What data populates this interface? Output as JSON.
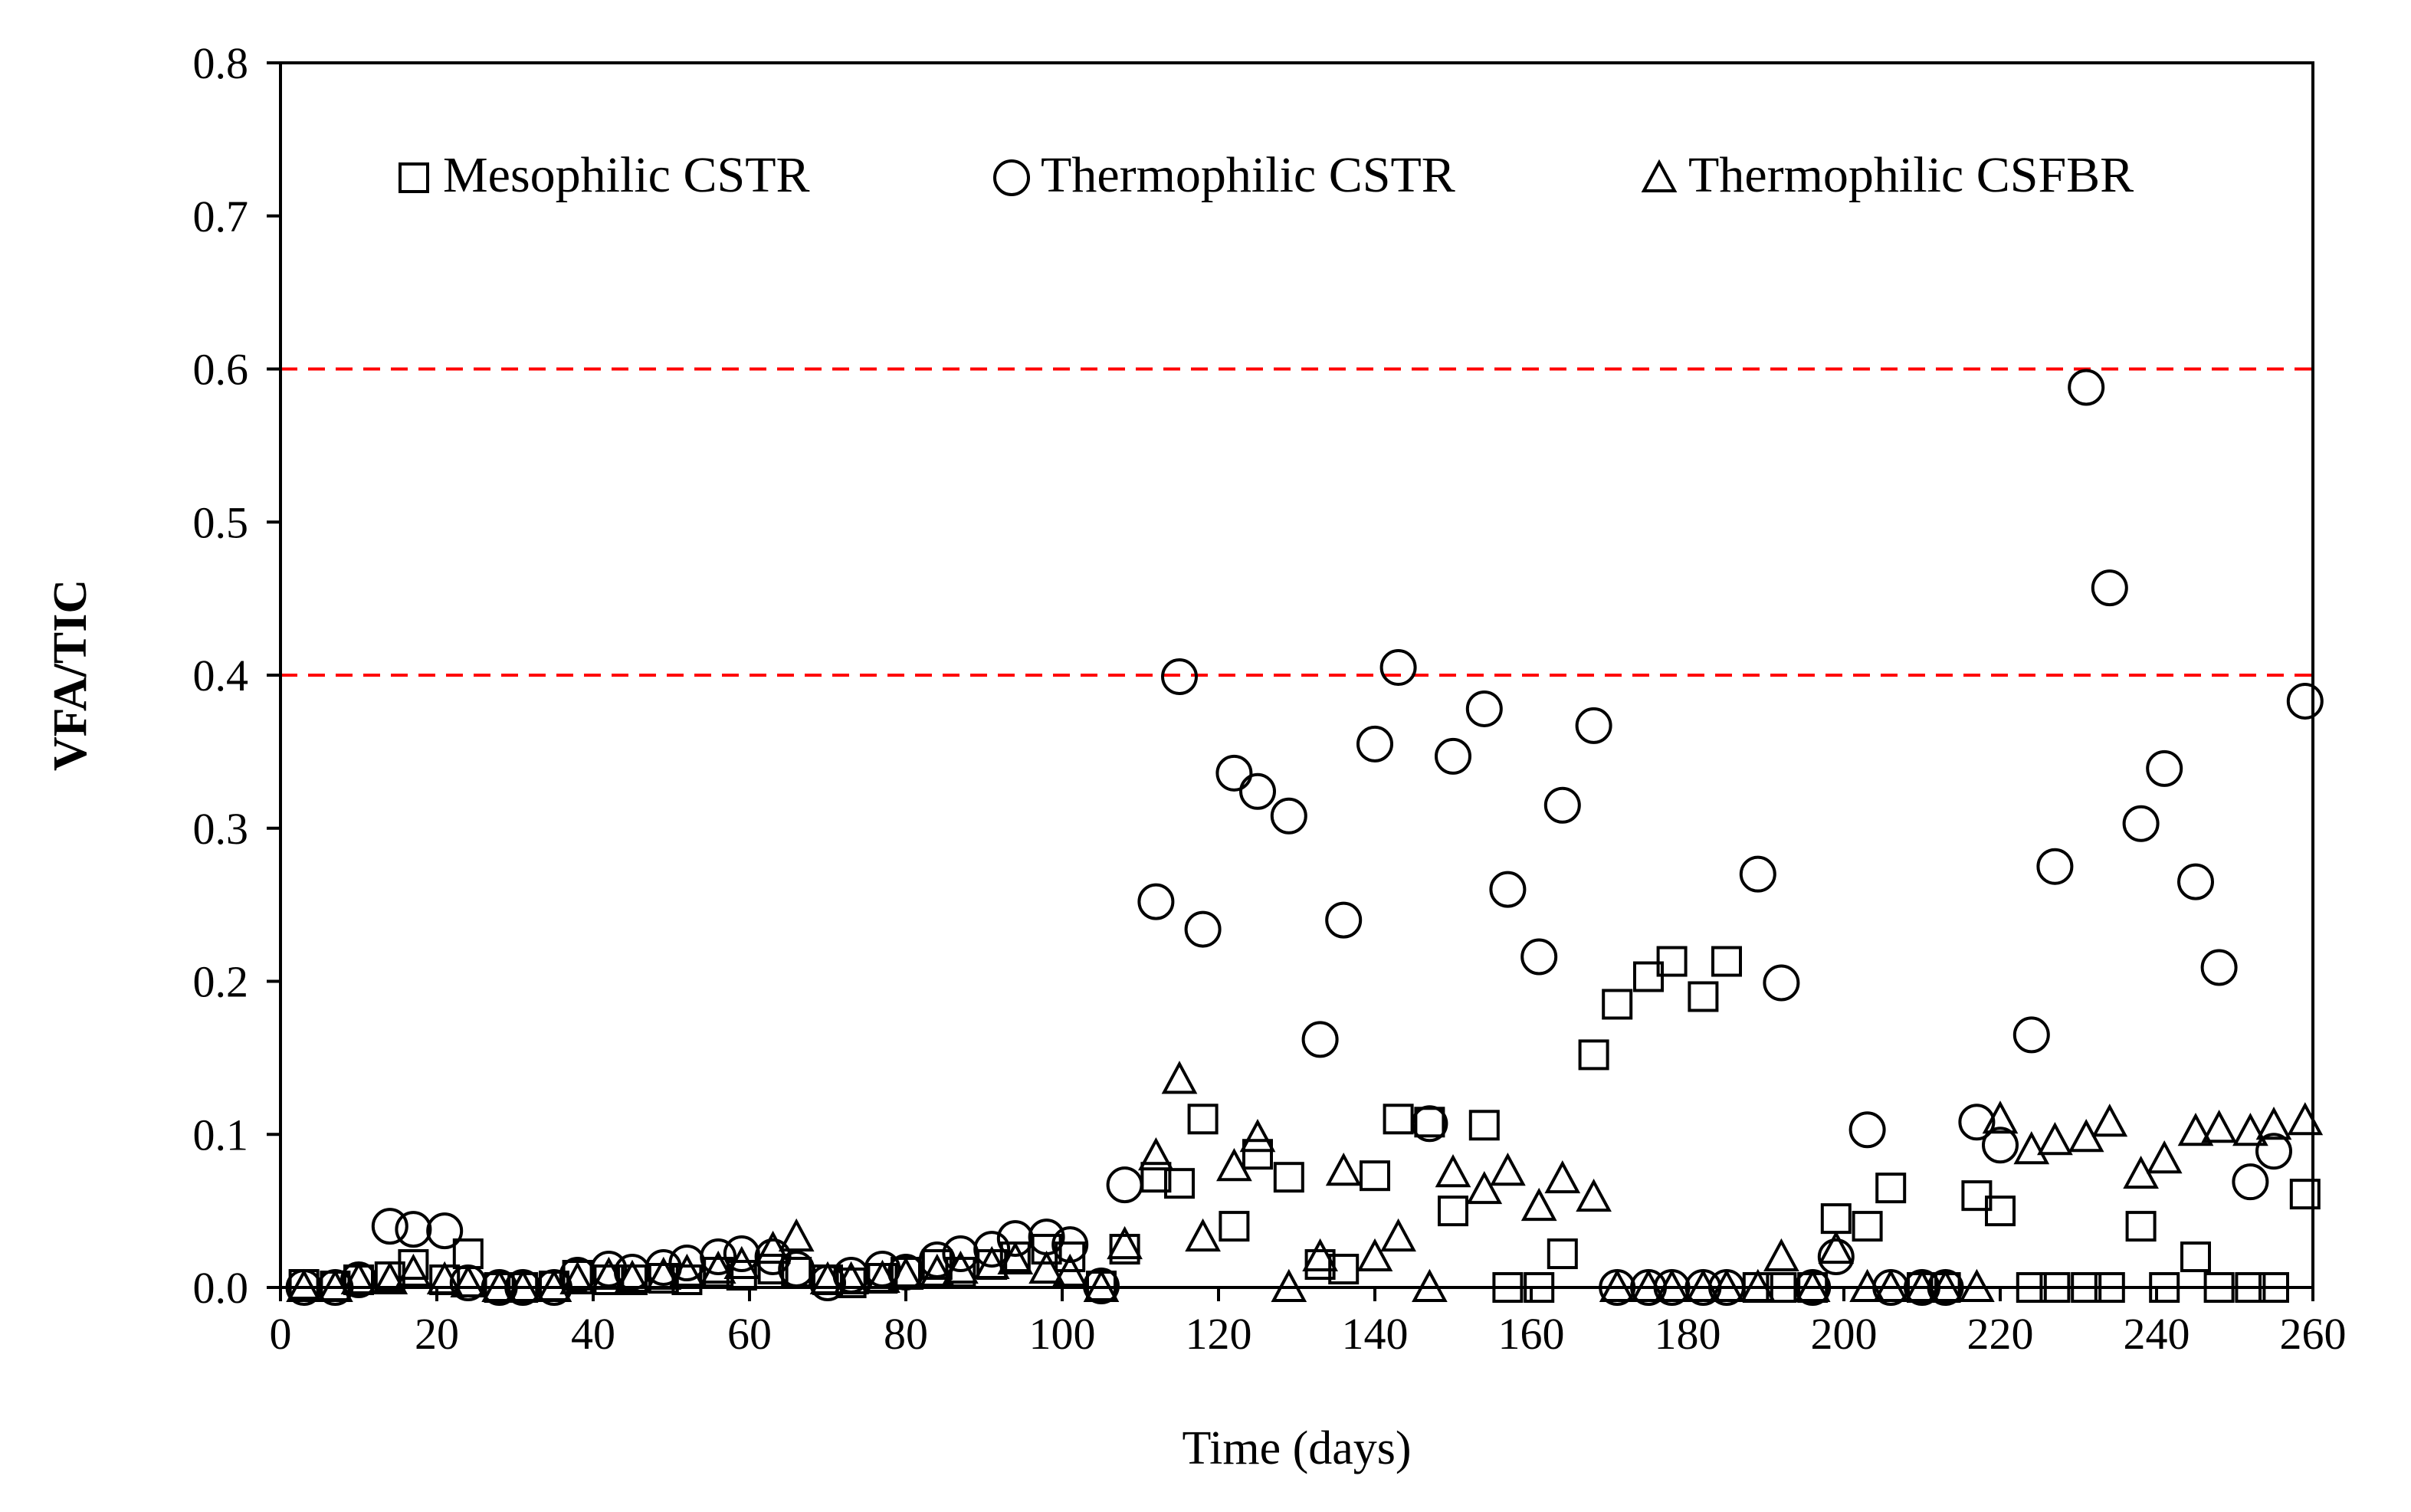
{
  "chart_data": {
    "type": "scatter",
    "title": "",
    "xlabel": "Time (days)",
    "ylabel": "VFA/TIC",
    "xlim": [
      0,
      260
    ],
    "ylim": [
      0,
      0.8
    ],
    "x_ticks": [
      "0",
      "20",
      "40",
      "60",
      "80",
      "100",
      "120",
      "140",
      "160",
      "180",
      "200",
      "220",
      "240",
      "260"
    ],
    "y_ticks": [
      "0.0",
      "0.1",
      "0.2",
      "0.3",
      "0.4",
      "0.5",
      "0.6",
      "0.7",
      "0.8"
    ],
    "grid": false,
    "legend_position": "top",
    "reference_lines": [
      {
        "y": 0.6,
        "color": "#ff0000",
        "style": "dashed"
      },
      {
        "y": 0.4,
        "color": "#ff0000",
        "style": "dashed"
      }
    ],
    "series": [
      {
        "name": "Mesophilic CSTR",
        "marker": "square",
        "x": [
          3,
          7,
          10,
          14,
          17,
          21,
          24,
          28,
          31,
          35,
          38,
          42,
          45,
          49,
          52,
          56,
          59,
          63,
          66,
          70,
          73,
          77,
          80,
          84,
          87,
          91,
          94,
          98,
          101,
          105,
          108,
          112,
          115,
          118,
          122,
          125,
          129,
          133,
          136,
          140,
          143,
          147,
          150,
          154,
          157,
          161,
          164,
          168,
          171,
          175,
          178,
          182,
          185,
          189,
          192,
          196,
          199,
          203,
          206,
          210,
          213,
          217,
          220,
          224,
          227,
          231,
          234,
          238,
          241,
          245,
          248,
          252,
          255,
          259
        ],
        "y": [
          0.002,
          0.001,
          0.005,
          0.007,
          0.015,
          0.005,
          0.022,
          0.0,
          0.0,
          0.001,
          0.008,
          0.005,
          0.005,
          0.006,
          0.005,
          0.01,
          0.008,
          0.012,
          0.01,
          0.005,
          0.003,
          0.006,
          0.01,
          0.015,
          0.01,
          0.015,
          0.02,
          0.025,
          0.02,
          0.001,
          0.025,
          0.072,
          0.068,
          0.11,
          0.04,
          0.087,
          0.072,
          0.015,
          0.012,
          0.073,
          0.11,
          0.108,
          0.05,
          0.106,
          0.0,
          0.0,
          0.022,
          0.152,
          0.185,
          0.203,
          0.213,
          0.19,
          0.213,
          0.0,
          0.0,
          0.0,
          0.045,
          0.04,
          0.065,
          0.0,
          0.0,
          0.06,
          0.05,
          0.0,
          0.0,
          0.0,
          0.0,
          0.04,
          0.0,
          0.02,
          0.0,
          0.0,
          0.0,
          0.061
        ]
      },
      {
        "name": "Thermophilic CSTR",
        "marker": "circle",
        "x": [
          3,
          7,
          10,
          14,
          17,
          21,
          24,
          28,
          31,
          35,
          38,
          42,
          45,
          49,
          52,
          56,
          59,
          63,
          66,
          70,
          73,
          77,
          80,
          84,
          87,
          91,
          94,
          98,
          101,
          105,
          108,
          112,
          115,
          118,
          122,
          125,
          129,
          133,
          136,
          140,
          143,
          147,
          150,
          154,
          157,
          161,
          164,
          168,
          171,
          175,
          178,
          182,
          185,
          189,
          192,
          196,
          199,
          203,
          206,
          210,
          213,
          217,
          220,
          224,
          227,
          231,
          234,
          238,
          241,
          245,
          248,
          252,
          255,
          259
        ],
        "y": [
          0.0,
          0.0,
          0.005,
          0.04,
          0.038,
          0.037,
          0.003,
          0.0,
          0.0,
          0.0,
          0.008,
          0.012,
          0.01,
          0.013,
          0.016,
          0.02,
          0.022,
          0.02,
          0.012,
          0.003,
          0.008,
          0.012,
          0.01,
          0.018,
          0.022,
          0.025,
          0.032,
          0.033,
          0.028,
          0.001,
          0.067,
          0.252,
          0.399,
          0.234,
          0.336,
          0.324,
          0.308,
          0.162,
          0.24,
          0.355,
          0.405,
          0.107,
          0.347,
          0.378,
          0.26,
          0.216,
          0.315,
          0.367,
          0.0,
          0.0,
          0.0,
          0.0,
          0.0,
          0.27,
          0.199,
          0.0,
          0.02,
          0.103,
          0.0,
          0.0,
          0.0,
          0.108,
          0.093,
          0.165,
          0.275,
          0.588,
          0.457,
          0.303,
          0.339,
          0.265,
          0.209,
          0.069,
          0.089,
          0.383
        ]
      },
      {
        "name": "Thermophilic CSFBR",
        "marker": "triangle",
        "x": [
          3,
          7,
          10,
          14,
          17,
          21,
          24,
          28,
          31,
          35,
          38,
          42,
          45,
          49,
          52,
          56,
          59,
          63,
          66,
          70,
          73,
          77,
          80,
          84,
          87,
          91,
          94,
          98,
          101,
          105,
          108,
          112,
          115,
          118,
          122,
          125,
          129,
          133,
          136,
          140,
          143,
          147,
          150,
          154,
          157,
          161,
          164,
          168,
          171,
          175,
          178,
          182,
          185,
          189,
          192,
          196,
          199,
          203,
          206,
          210,
          213,
          217,
          220,
          224,
          227,
          231,
          234,
          238,
          241,
          245,
          248,
          252,
          255,
          259
        ],
        "y": [
          0.0,
          0.0,
          0.005,
          0.005,
          0.01,
          0.005,
          0.003,
          0.0,
          0.0,
          0.0,
          0.005,
          0.008,
          0.006,
          0.008,
          0.01,
          0.012,
          0.015,
          0.025,
          0.033,
          0.005,
          0.005,
          0.006,
          0.008,
          0.01,
          0.012,
          0.015,
          0.018,
          0.012,
          0.01,
          0.0,
          0.028,
          0.086,
          0.136,
          0.033,
          0.079,
          0.098,
          0.0,
          0.02,
          0.076,
          0.02,
          0.033,
          0.0,
          0.075,
          0.064,
          0.076,
          0.053,
          0.071,
          0.059,
          0.0,
          0.0,
          0.0,
          0.0,
          0.0,
          0.0,
          0.02,
          0.0,
          0.025,
          0.0,
          0.0,
          0.0,
          0.0,
          0.0,
          0.11,
          0.09,
          0.096,
          0.098,
          0.108,
          0.074,
          0.084,
          0.102,
          0.104,
          0.102,
          0.106,
          0.109
        ]
      }
    ]
  }
}
